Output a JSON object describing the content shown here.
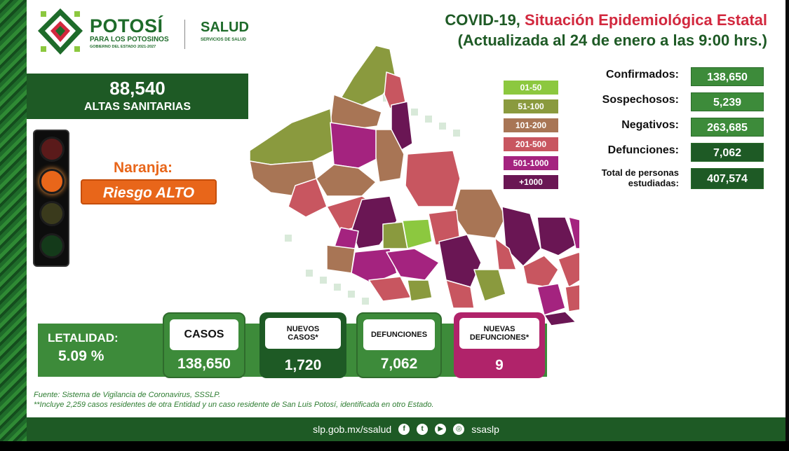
{
  "header": {
    "logo_title": "POTOSÍ",
    "logo_subtitle": "PARA LOS POTOSINOS",
    "logo_government": "GOBIERNO DEL ESTADO 2021-2027",
    "salud": "SALUD",
    "salud_subtitle": "SERVICIOS DE SALUD",
    "title_part1": "COVID-19, ",
    "title_part2": "Situación Epidemiológica Estatal",
    "subtitle": "(Actualizada al 24 de enero a las 9:00 hrs.)"
  },
  "altas": {
    "value": "88,540",
    "label": "ALTAS SANITARIAS"
  },
  "semaforo": {
    "label": "Naranja:",
    "risk": "Riesgo ALTO"
  },
  "legend": [
    {
      "label": "01-50",
      "color": "#8cc83f"
    },
    {
      "label": "51-100",
      "color": "#8a9a3e"
    },
    {
      "label": "101-200",
      "color": "#a87555"
    },
    {
      "label": "201-500",
      "color": "#c85660"
    },
    {
      "label": "501-1000",
      "color": "#a4237f"
    },
    {
      "label": "+1000",
      "color": "#6a1654"
    }
  ],
  "stats": {
    "confirmados_label": "Confirmados:",
    "confirmados": "138,650",
    "sospechosos_label": "Sospechosos:",
    "sospechosos": "5,239",
    "negativos_label": "Negativos:",
    "negativos": "263,685",
    "defunciones_label": "Defunciones:",
    "defunciones": "7,062",
    "total_label_1": "Total de personas",
    "total_label_2": "estudiadas:",
    "total": "407,574"
  },
  "panel": {
    "letalidad_label": "LETALIDAD:",
    "letalidad_value": "5.09 %",
    "casos_label": "CASOS",
    "casos_value": "138,650",
    "nuevos_casos_label": "NUEVOS CASOS*",
    "nuevos_casos_value": "1,720",
    "defunciones_label": "DEFUNCIONES",
    "defunciones_value": "7,062",
    "nuevas_def_label": "NUEVAS DEFUNCIONES*",
    "nuevas_def_value": "9"
  },
  "footnotes": {
    "source": "Fuente: Sistema de Vigilancia de Coronavirus, SSSLP.",
    "note": "**Incluye 2,259 casos residentes de otra Entidad y un caso residente de San Luis Potosí, identificada en otro Estado."
  },
  "footer": {
    "url": "slp.gob.mx/ssalud",
    "handle": "ssaslp"
  },
  "colors": {
    "dark_green": "#1e5a25",
    "medium_green": "#3d8b3a",
    "red": "#d2283e",
    "orange": "#e8661a",
    "magenta": "#b0236a"
  }
}
